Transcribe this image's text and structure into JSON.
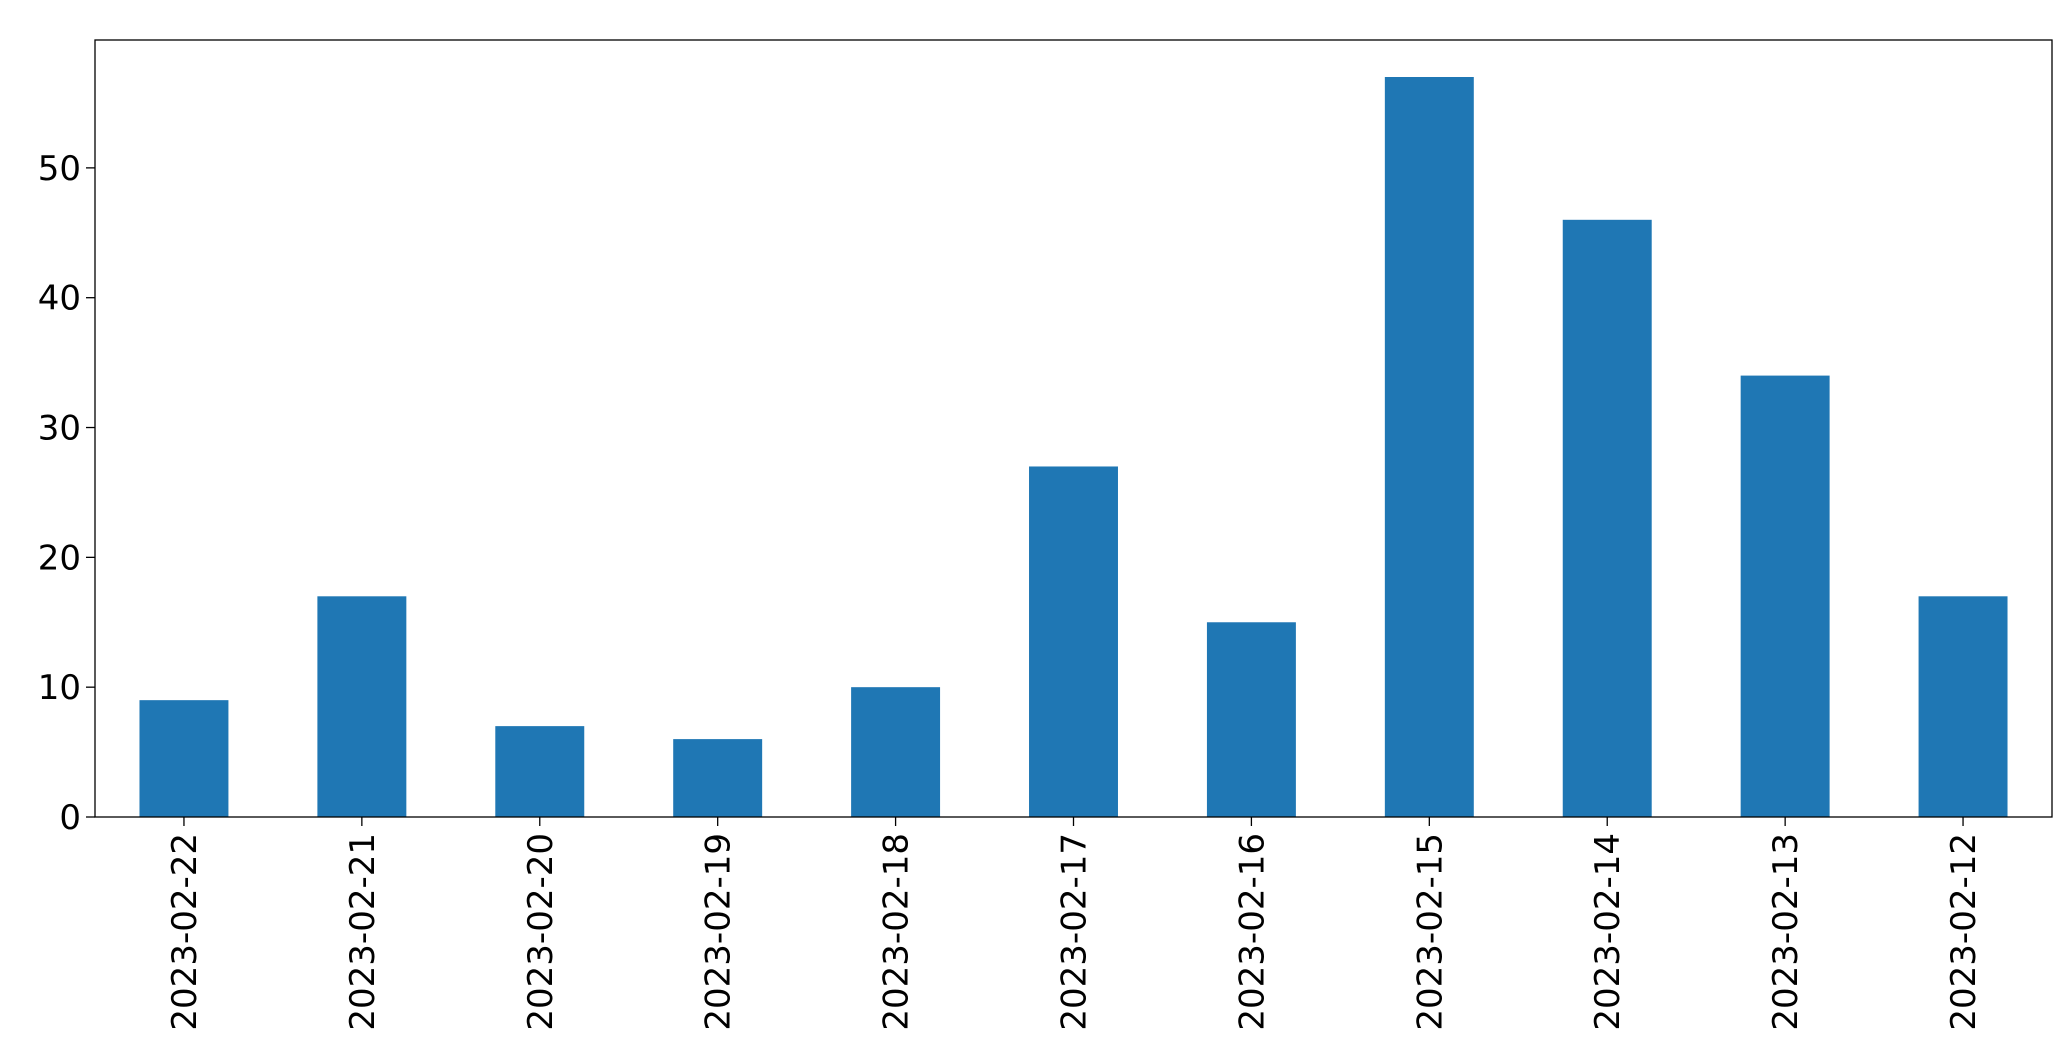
{
  "chart_data": {
    "type": "bar",
    "categories": [
      "2023-02-22",
      "2023-02-21",
      "2023-02-20",
      "2023-02-19",
      "2023-02-18",
      "2023-02-17",
      "2023-02-16",
      "2023-02-15",
      "2023-02-14",
      "2023-02-13",
      "2023-02-12"
    ],
    "values": [
      9,
      17,
      7,
      6,
      10,
      27,
      15,
      57,
      46,
      34,
      17
    ],
    "color": "#1f77b4",
    "ylim": [
      0,
      59.85
    ],
    "yticks": [
      0,
      10,
      20,
      30,
      40,
      50
    ],
    "grid": false
  }
}
